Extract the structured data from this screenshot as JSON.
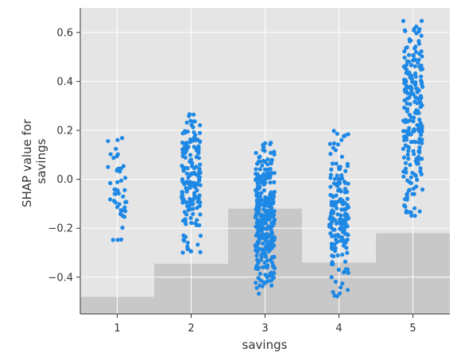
{
  "chart_data": {
    "type": "scatter",
    "title": "",
    "xlabel": "savings",
    "ylabel": "SHAP value for\nsavings",
    "xlim": [
      0.5,
      5.5
    ],
    "ylim": [
      -0.55,
      0.7
    ],
    "x_ticks": [
      1,
      2,
      3,
      4,
      5
    ],
    "y_ticks": [
      -0.4,
      -0.2,
      0.0,
      0.2,
      0.4,
      0.6
    ],
    "y_tick_labels": [
      "−0.4",
      "−0.2",
      "0.0",
      "0.2",
      "0.4",
      "0.6"
    ],
    "grid": true,
    "point_color": "#1e88e5",
    "plot_background": "#e5e5e5",
    "histogram_color": "#c8c8c8",
    "histogram_bottom": -0.55,
    "histogram": [
      {
        "x": 1,
        "top": -0.48
      },
      {
        "x": 2,
        "top": -0.345
      },
      {
        "x": 3,
        "top": -0.12
      },
      {
        "x": 4,
        "top": -0.34
      },
      {
        "x": 5,
        "top": -0.22
      }
    ],
    "groups": [
      {
        "x": 1,
        "n": 45,
        "y_range": [
          -0.25,
          0.18
        ]
      },
      {
        "x": 2,
        "n": 170,
        "y_range": [
          -0.3,
          0.28
        ]
      },
      {
        "x": 3,
        "n": 320,
        "y_range": [
          -0.47,
          0.15
        ]
      },
      {
        "x": 4,
        "n": 170,
        "y_range": [
          -0.49,
          0.2
        ]
      },
      {
        "x": 5,
        "n": 230,
        "y_range": [
          -0.17,
          0.65
        ]
      }
    ]
  }
}
